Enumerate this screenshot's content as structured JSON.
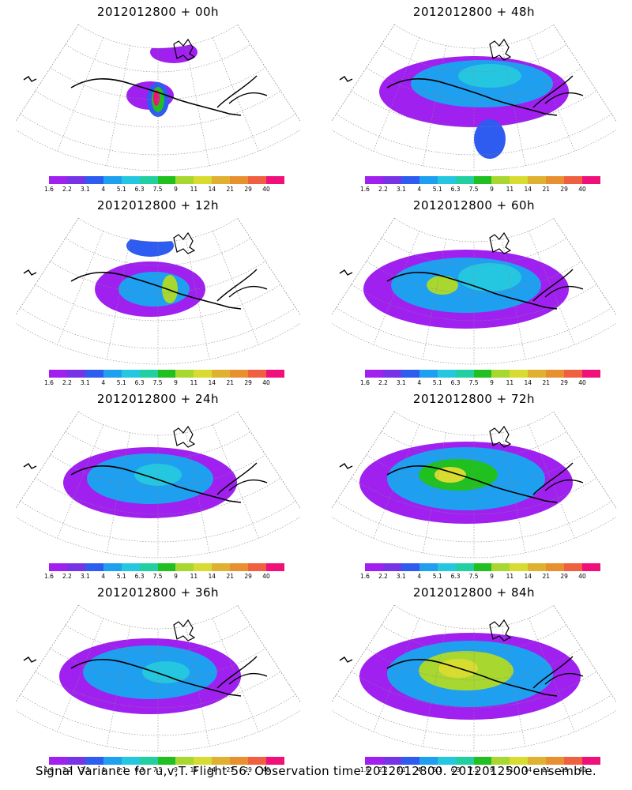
{
  "panels": [
    {
      "title": "2012012800 + 00h",
      "lead_hours": 0
    },
    {
      "title": "2012012800 + 48h",
      "lead_hours": 48
    },
    {
      "title": "2012012800 + 12h",
      "lead_hours": 12
    },
    {
      "title": "2012012800 + 60h",
      "lead_hours": 60
    },
    {
      "title": "2012012800 + 24h",
      "lead_hours": 24
    },
    {
      "title": "2012012800 + 72h",
      "lead_hours": 72
    },
    {
      "title": "2012012800 + 36h",
      "lead_hours": 36
    },
    {
      "title": "2012012800 + 84h",
      "lead_hours": 84
    }
  ],
  "colorbar": {
    "labels": [
      "1.6",
      "2.2",
      "3.1",
      "4",
      "5.1",
      "6.3",
      "7.5",
      "9",
      "11",
      "14",
      "21",
      "29",
      "40"
    ],
    "colors": [
      "#a020f0",
      "#7733e6",
      "#2e5bf0",
      "#1e9ff0",
      "#25c7e0",
      "#22cfa0",
      "#20c020",
      "#a8d830",
      "#d8dc30",
      "#e0b030",
      "#e89030",
      "#f06040",
      "#f0107a"
    ]
  },
  "caption": "Signal Variance for u,v,T. Flight 56. Observation time 2012012800. 2012012500 ensemble."
}
